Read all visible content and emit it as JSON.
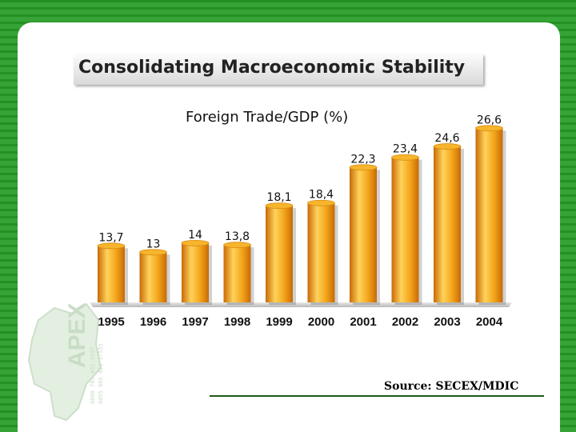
{
  "slide": {
    "title": "Consolidating Macroeconomic Stability",
    "source": "Source: SECEX/MDIC",
    "logo_text": "APEX",
    "logo_small_text": [
      "0800 705 451 3707",
      "0055 665 451 37555"
    ]
  },
  "colors": {
    "background": "#2d9a2d",
    "bar_light": "#ffd35a",
    "bar_mid": "#f2a218",
    "bar_dark": "#c86a08",
    "floor": "#d0d0d0"
  },
  "chart_data": {
    "type": "bar",
    "title": "Foreign Trade/GDP (%)",
    "categories": [
      "1995",
      "1996",
      "1997",
      "1998",
      "1999",
      "2000",
      "2001",
      "2002",
      "2003",
      "2004"
    ],
    "values": [
      13.7,
      13,
      14,
      13.8,
      18.1,
      18.4,
      22.3,
      23.4,
      24.6,
      26.6
    ],
    "value_labels": [
      "13,7",
      "13",
      "14",
      "13,8",
      "18,1",
      "18,4",
      "22,3",
      "23,4",
      "24,6",
      "26,6"
    ],
    "ylim": [
      0,
      30
    ],
    "grid": false,
    "legend": "none"
  }
}
